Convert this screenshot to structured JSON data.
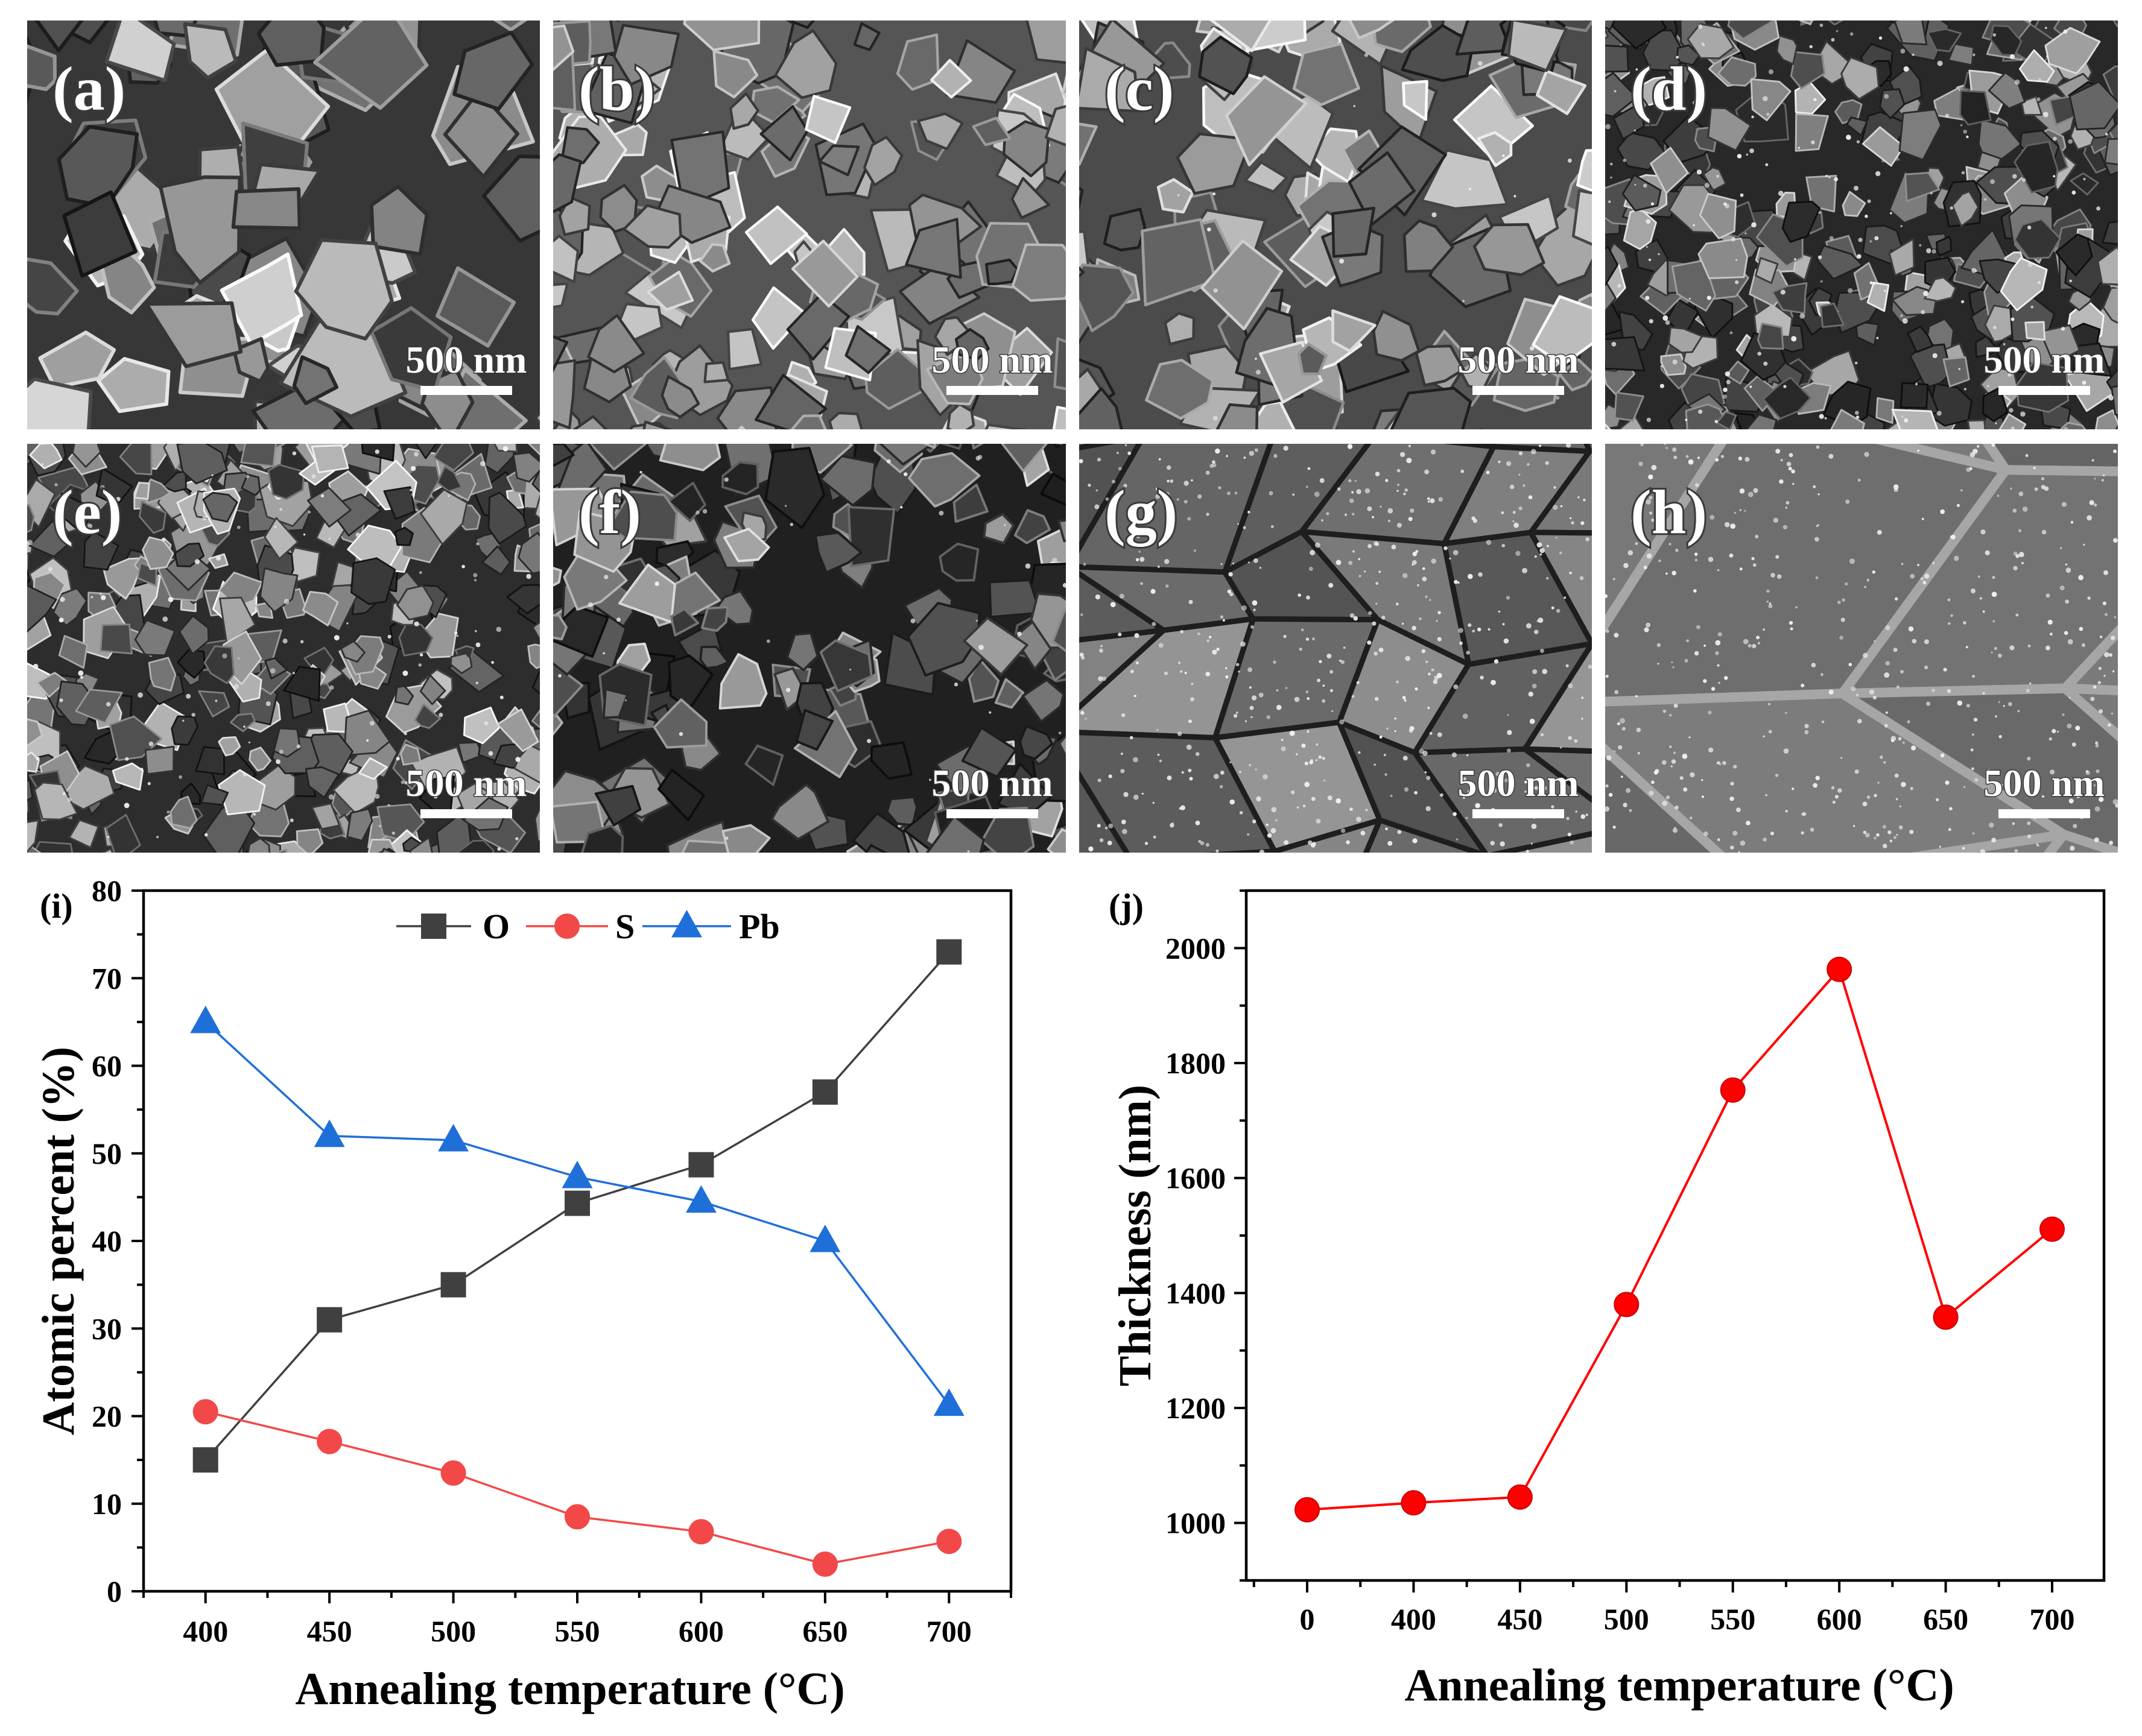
{
  "sem_panels": [
    {
      "label": "(a)",
      "scale_bar": "500 nm"
    },
    {
      "label": "(b)",
      "scale_bar": "500 nm"
    },
    {
      "label": "(c)",
      "scale_bar": "500 nm"
    },
    {
      "label": "(d)",
      "scale_bar": "500 nm"
    },
    {
      "label": "(e)",
      "scale_bar": "500 nm"
    },
    {
      "label": "(f)",
      "scale_bar": "500 nm"
    },
    {
      "label": "(g)",
      "scale_bar": "500 nm"
    },
    {
      "label": "(h)",
      "scale_bar": "500 nm"
    }
  ],
  "chart_data": [
    {
      "panel_label": "(i)",
      "type": "line",
      "x": [
        400,
        450,
        500,
        550,
        600,
        650,
        700
      ],
      "series": [
        {
          "name": "O",
          "marker": "square",
          "color": "#404040",
          "values": [
            15.0,
            31.0,
            35.0,
            44.3,
            48.7,
            57.0,
            73.0
          ]
        },
        {
          "name": "S",
          "marker": "circle",
          "color": "#f24848",
          "values": [
            20.5,
            17.1,
            13.5,
            8.5,
            6.8,
            3.1,
            5.7
          ]
        },
        {
          "name": "Pb",
          "marker": "triangle",
          "color": "#1f6fd8",
          "values": [
            65.0,
            52.0,
            51.5,
            47.3,
            44.5,
            40.0,
            21.3
          ]
        }
      ],
      "xlabel": "Annealing temperature (°C)",
      "ylabel": "Atomic percent (%)",
      "xlim": [
        375,
        725
      ],
      "ylim": [
        0,
        80
      ],
      "xticks": [
        400,
        450,
        500,
        550,
        600,
        650,
        700
      ],
      "yticks": [
        0,
        10,
        20,
        30,
        40,
        50,
        60,
        70,
        80
      ],
      "grid": false,
      "legend": "top-center"
    },
    {
      "panel_label": "(j)",
      "type": "line",
      "categories": [
        "0",
        "400",
        "450",
        "500",
        "550",
        "600",
        "650",
        "700"
      ],
      "series": [
        {
          "marker": "circle",
          "color": "#ff0000",
          "values": [
            1023,
            1035,
            1045,
            1380,
            1753,
            1963,
            1358,
            1511
          ]
        }
      ],
      "xlabel": "Annealing temperature (°C)",
      "ylabel": "Thickness (nm)",
      "ylim": [
        900,
        2100
      ],
      "yticks": [
        1000,
        1200,
        1400,
        1600,
        1800,
        2000
      ],
      "grid": false,
      "legend": "none"
    }
  ]
}
